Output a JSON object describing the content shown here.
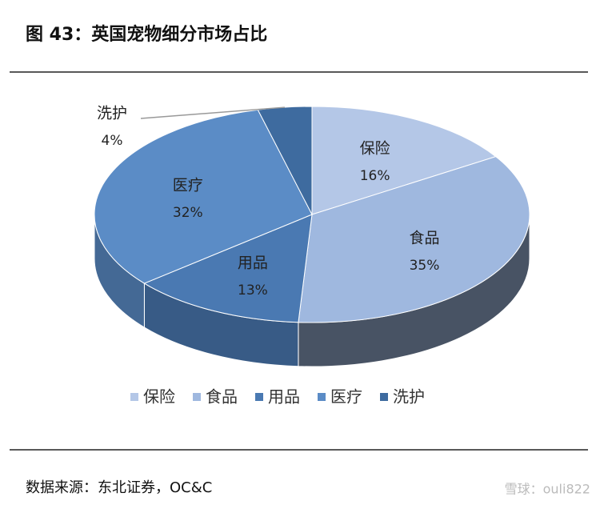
{
  "chart_data": {
    "type": "pie3d",
    "title": "图 43：英国宠物细分市场占比",
    "categories": [
      "保险",
      "食品",
      "用品",
      "医疗",
      "洗护"
    ],
    "values": [
      16,
      35,
      13,
      32,
      4
    ],
    "value_labels": [
      "16%",
      "35%",
      "13%",
      "32%",
      "4%"
    ],
    "colors": [
      "#b4c7e7",
      "#9fb8df",
      "#4a79b2",
      "#5b8cc6",
      "#3e6b9f"
    ],
    "legend": "bottom",
    "source": "数据来源：东北证券，OC&C",
    "watermark": "雪球：ouli822"
  }
}
